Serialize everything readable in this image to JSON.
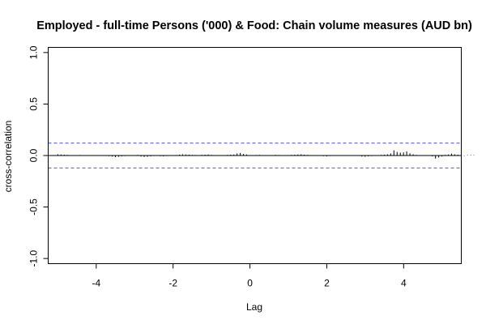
{
  "chart_data": {
    "type": "bar",
    "title": "Employed - full-time Persons ('000) & Food: Chain volume measures (AUD bn)",
    "xlabel": "Lag",
    "ylabel": "cross-correlation",
    "xlim": [
      -5.25,
      5.5
    ],
    "ylim": [
      -1.05,
      1.05
    ],
    "x_ticks": [
      -4,
      -2,
      0,
      2,
      4
    ],
    "y_ticks": [
      -1.0,
      -0.5,
      0.0,
      0.5,
      1.0
    ],
    "x_tick_labels": [
      "-4",
      "-2",
      "0",
      "2",
      "4"
    ],
    "y_tick_labels": [
      "-1.0",
      "-0.5",
      "0.0",
      "0.5",
      "1.0"
    ],
    "confidence_band": [
      0.121,
      -0.121
    ],
    "colors": {
      "bars": "#000000",
      "zero_line": "#000000",
      "confidence": "#4d4dff",
      "frame": "#000000"
    },
    "lag_start": -5.0,
    "lag_step": 0.0833,
    "values": [
      0.012,
      0.01,
      0.008,
      0.006,
      0.003,
      0.002,
      0.004,
      0.005,
      0.003,
      0.002,
      0.001,
      -0.003,
      0.002,
      0.004,
      0.003,
      0.002,
      -0.006,
      -0.01,
      -0.015,
      -0.012,
      -0.008,
      -0.005,
      -0.003,
      0.002,
      0.004,
      0.006,
      -0.01,
      -0.014,
      -0.012,
      -0.008,
      -0.005,
      -0.003,
      -0.006,
      -0.008,
      -0.005,
      -0.003,
      0.003,
      0.005,
      0.008,
      0.012,
      0.01,
      0.008,
      0.006,
      0.005,
      0.003,
      0.006,
      0.008,
      0.01,
      0.006,
      0.004,
      0.003,
      0.002,
      0.004,
      0.006,
      0.008,
      0.01,
      0.02,
      0.025,
      0.015,
      0.01,
      0.003,
      0.004,
      0.005,
      0.006,
      0.004,
      0.003,
      0.002,
      0.004,
      0.006,
      0.005,
      0.003,
      0.002,
      0.004,
      0.006,
      0.008,
      0.01,
      0.012,
      0.008,
      0.006,
      0.004,
      0.002,
      -0.003,
      -0.004,
      -0.006,
      -0.008,
      -0.005,
      -0.003,
      0.002,
      -0.004,
      -0.003,
      0.003,
      0.004,
      0.003,
      0.002,
      -0.003,
      -0.01,
      -0.012,
      -0.008,
      -0.005,
      -0.003,
      0.003,
      0.006,
      0.008,
      0.012,
      0.02,
      0.05,
      0.035,
      0.028,
      0.03,
      0.04,
      0.022,
      0.012,
      0.006,
      -0.004,
      0.003,
      0.004,
      0.003,
      -0.008,
      -0.03,
      -0.02,
      -0.01,
      0.006,
      0.01,
      0.018,
      0.012,
      0.008,
      0.003,
      -0.003,
      0.004,
      0.005,
      0.004
    ]
  }
}
